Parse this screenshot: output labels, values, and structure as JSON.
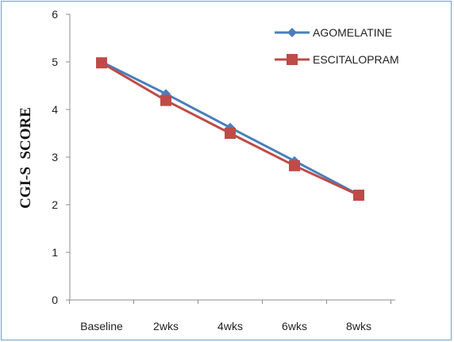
{
  "chart_data": {
    "type": "line",
    "categories": [
      "Baseline",
      "2wks",
      "4wks",
      "6wks",
      "8wks"
    ],
    "series": [
      {
        "name": "AGOMELATINE",
        "values": [
          5.0,
          4.33,
          3.62,
          2.92,
          2.21
        ],
        "color": "#4a7ebb",
        "marker": "diamond"
      },
      {
        "name": "ESCITALOPRAM",
        "values": [
          4.98,
          4.19,
          3.5,
          2.82,
          2.2
        ],
        "color": "#be4b48",
        "marker": "square"
      }
    ],
    "title": "",
    "xlabel": "",
    "ylabel": "CGI-S  SCORE",
    "ylim": [
      0,
      6
    ],
    "yticks": [
      "0",
      "1",
      "2",
      "3",
      "4",
      "5",
      "6"
    ],
    "grid": false,
    "legend_position": "top-right"
  }
}
